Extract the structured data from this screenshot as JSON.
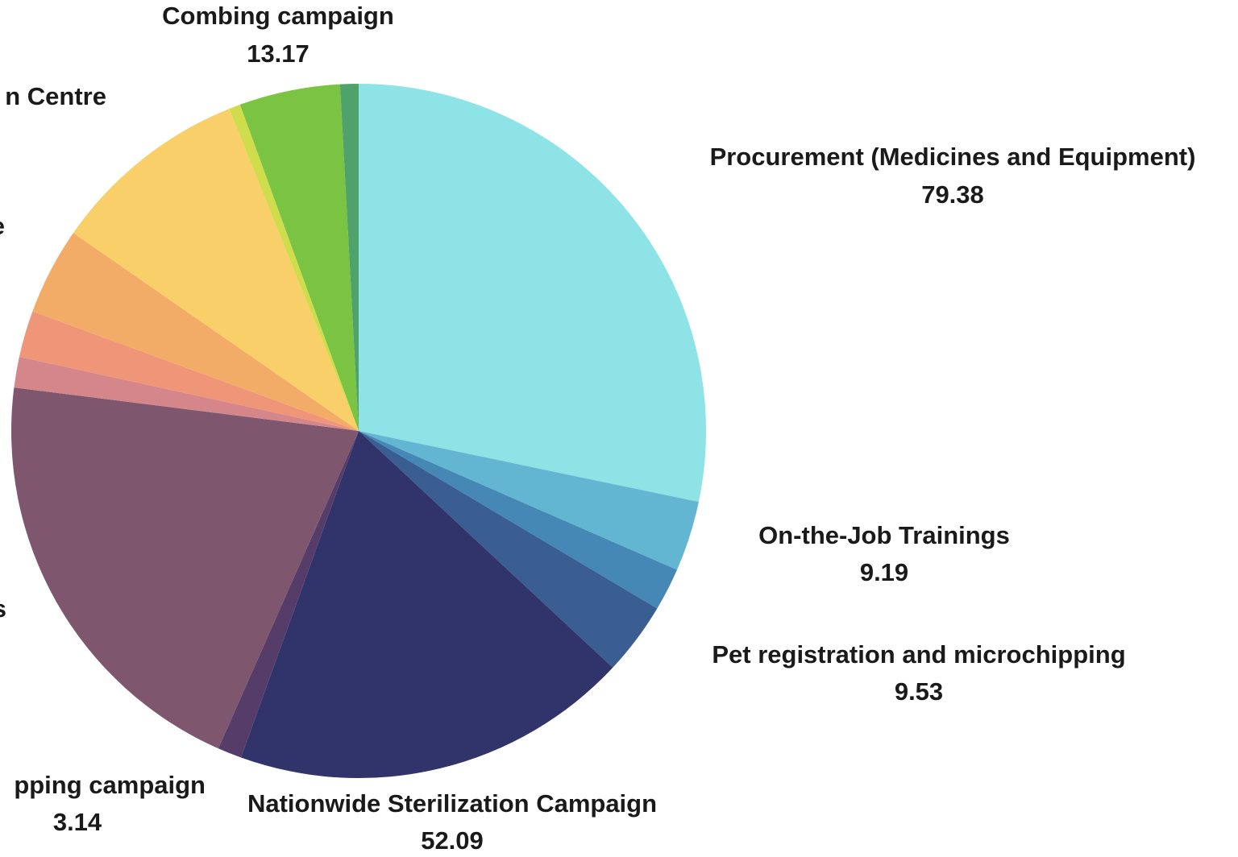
{
  "chart_data": {
    "type": "pie",
    "categories": [
      "Procurement (Medicines and Equipment)",
      "On-the-Job Trainings",
      null,
      "Pet registration and microchipping",
      "Nationwide Sterilization Campaign",
      "pping campaign",
      "s",
      null,
      null,
      "e",
      "n Centre",
      null,
      "Combing campaign",
      null
    ],
    "values": [
      79.38,
      9.19,
      5.6,
      9.53,
      52.09,
      3.14,
      57.2,
      4.0,
      6.1,
      11.4,
      26.0,
      1.5,
      13.17,
      2.4
    ],
    "colors": [
      "#8de3e6",
      "#63b6d2",
      "#4587b5",
      "#3a5d92",
      "#31346b",
      "#563d69",
      "#7e576f",
      "#d4868a",
      "#ef9679",
      "#f3ab68",
      "#f8cf69",
      "#cfdd4d",
      "#7bc443",
      "#4fa26c"
    ]
  }
}
